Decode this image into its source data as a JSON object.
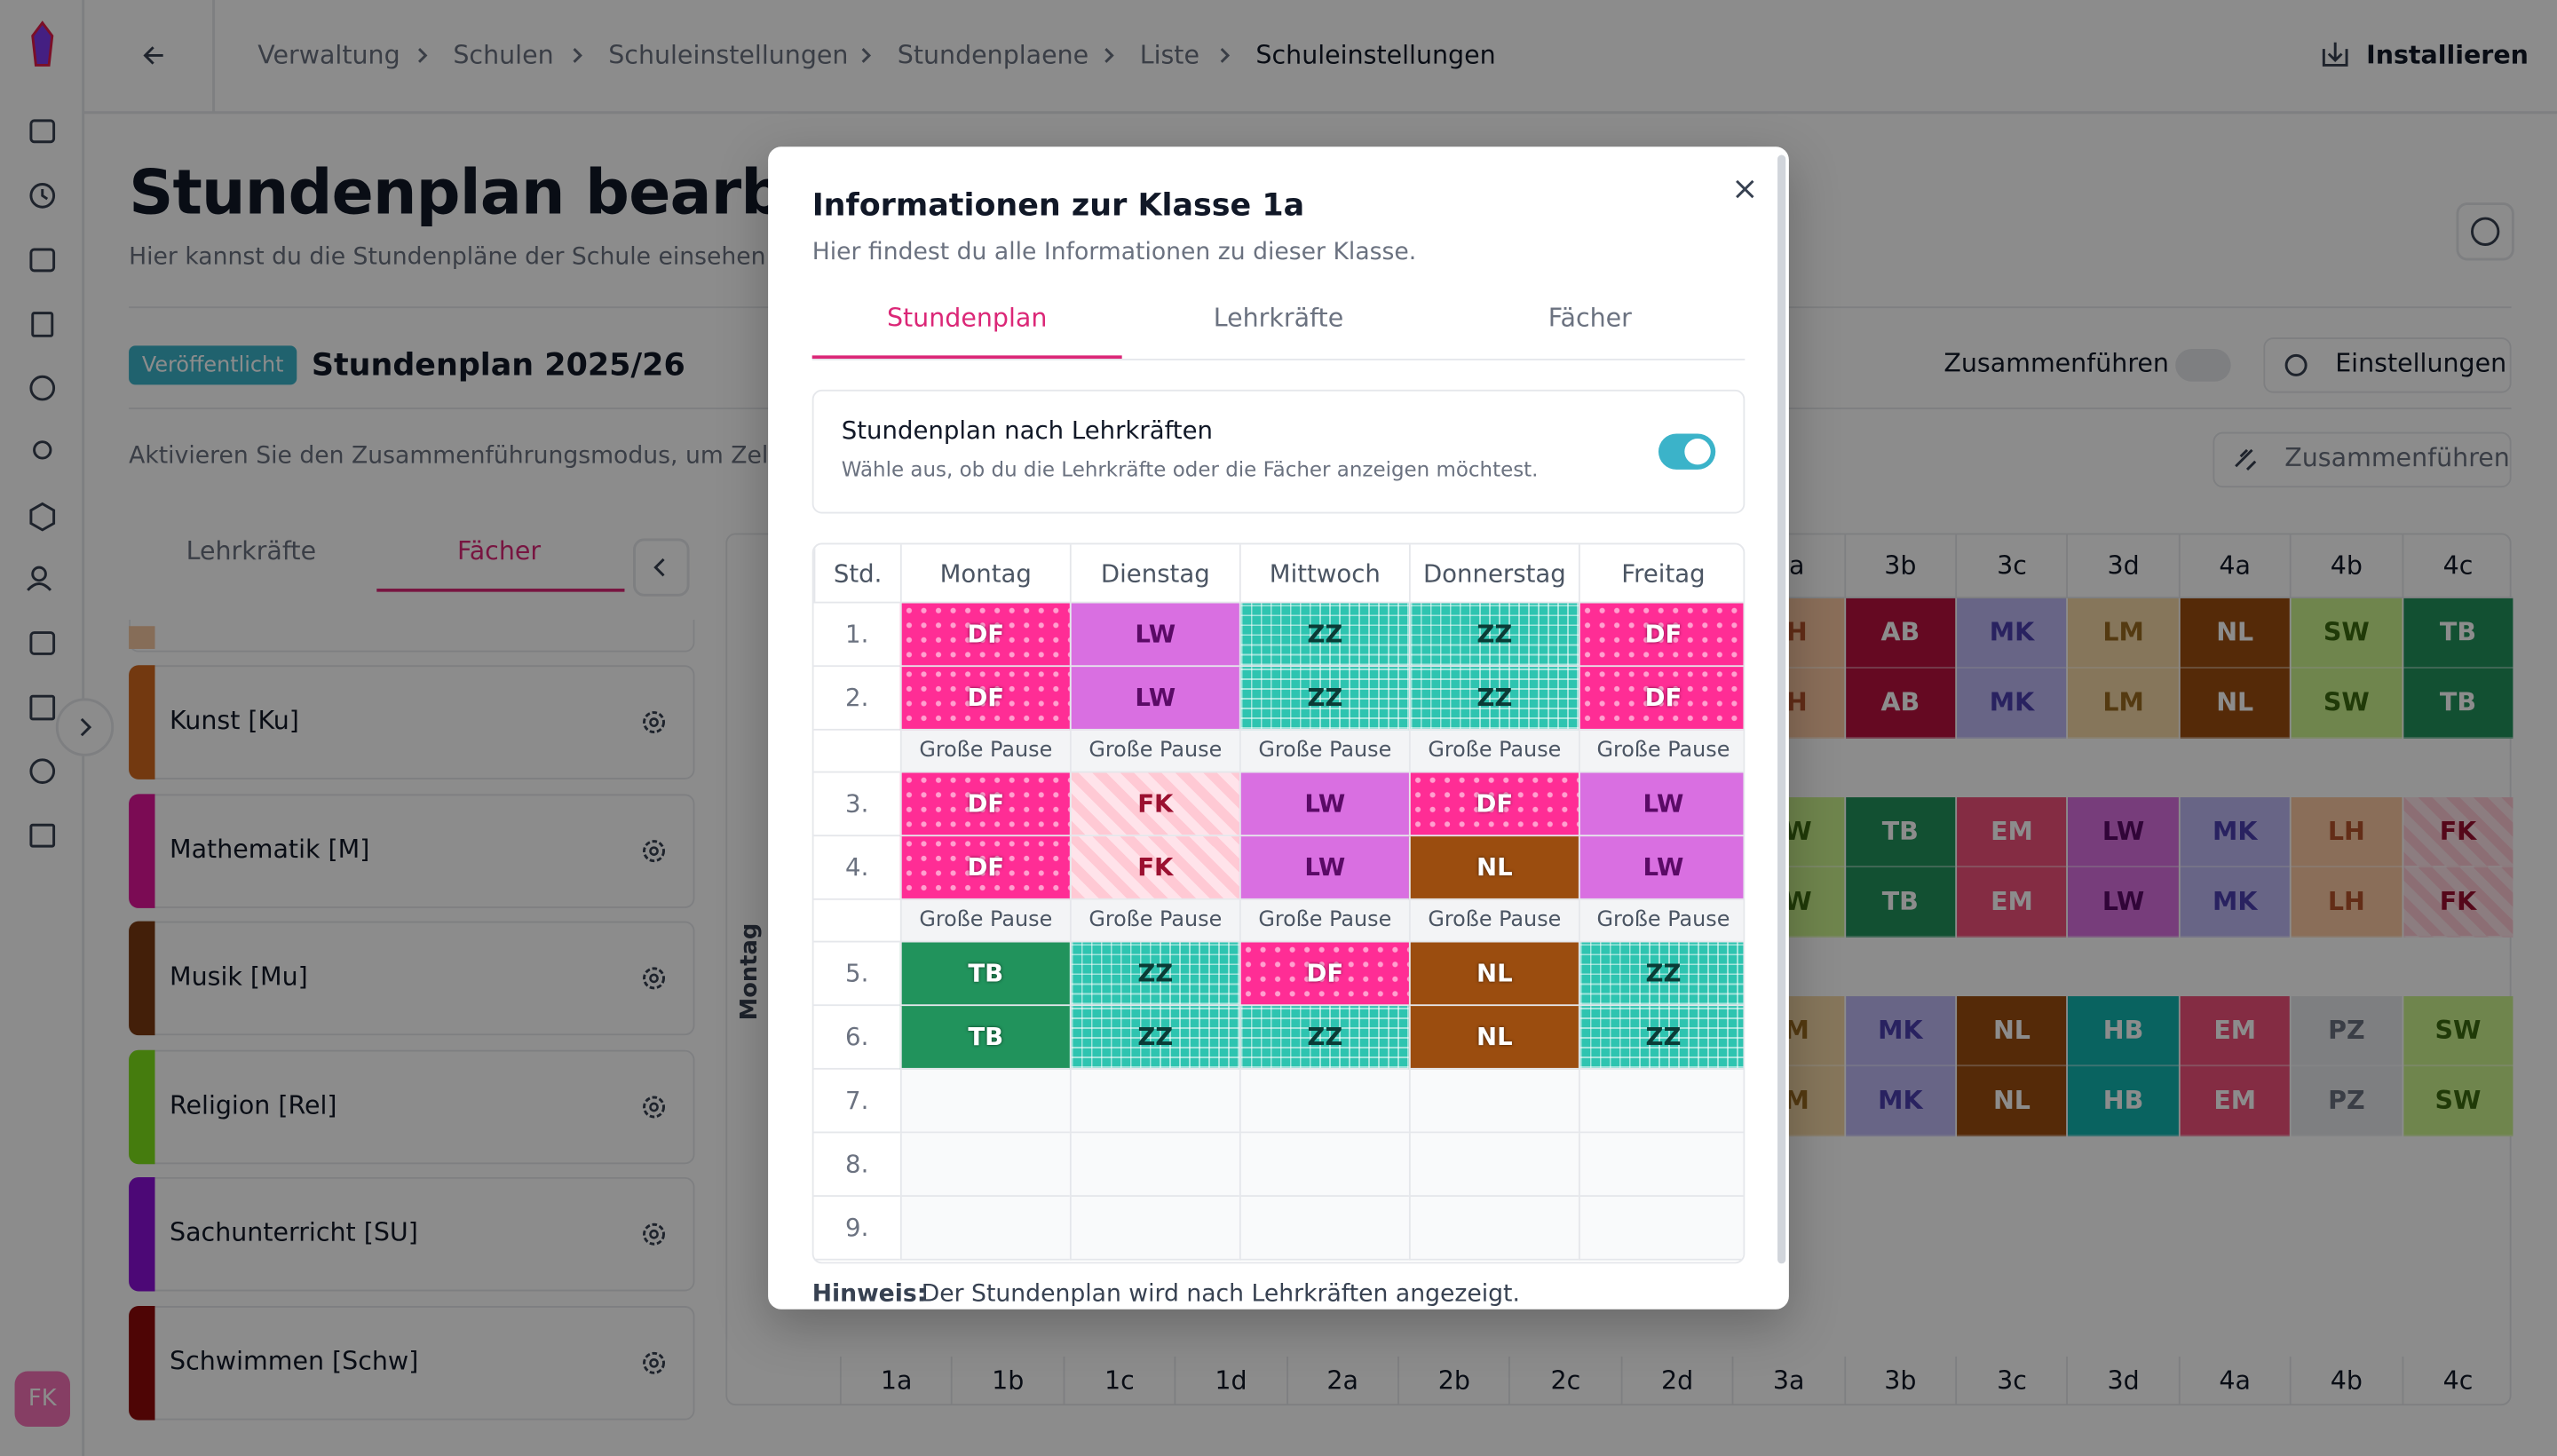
{
  "sidebar": {
    "avatar": "FK"
  },
  "header": {
    "breadcrumbs": [
      "Verwaltung",
      "Schulen",
      "Schuleinstellungen",
      "Stundenplaene",
      "Liste",
      "Schuleinstellungen"
    ],
    "install": "Installieren"
  },
  "page": {
    "title": "Stundenplan bearbeit",
    "subtitle": "Hier kannst du die Stundenpläne der Schule einsehen",
    "status": "Veröffentlicht",
    "plan": "Stundenplan 2025/26",
    "merge_label": "Zusammenführen",
    "settings": "Einstellungen",
    "info": "Aktivieren Sie den Zusammenführungsmodus, um Zell",
    "merge_button": "Zusammenführen",
    "tabs": [
      "Lehrkräfte",
      "Fächer"
    ],
    "subjects": [
      {
        "name": "Kunst [Ku]",
        "color": "#d2691e"
      },
      {
        "name": "Mathematik [M]",
        "color": "#e0149a"
      },
      {
        "name": "Musik [Mu]",
        "color": "#7a3a12"
      },
      {
        "name": "Religion [Rel]",
        "color": "#7ee21a"
      },
      {
        "name": "Sachunterricht [SU]",
        "color": "#8a10d8"
      },
      {
        "name": "Schwimmen [Schw]",
        "color": "#8e0a0a"
      }
    ]
  },
  "grid": {
    "day": "Montag",
    "classes": [
      "1a",
      "1b",
      "1c",
      "1d",
      "2a",
      "2b",
      "2c",
      "2d",
      "3a",
      "3b",
      "3c",
      "3d",
      "4a",
      "4b",
      "4c"
    ],
    "blocks": [
      [
        {
          "label": "LH",
          "color": "#fbc9a2",
          "text": "#b4522a"
        },
        {
          "label": "AB",
          "color": "#b8123f",
          "text": "#ffffff"
        },
        {
          "label": "MK",
          "color": "#bdb8f4",
          "text": "#4b3fb0"
        },
        {
          "label": "LM",
          "color": "#f5d8a6",
          "text": "#9a6a20"
        },
        {
          "label": "NL",
          "color": "#9b4d0f",
          "text": "#ffffff"
        },
        {
          "label": "SW",
          "color": "#cbf28c",
          "text": "#3b6b10"
        },
        {
          "label": "TB",
          "color": "#21935c",
          "text": "#ffffff"
        }
      ],
      [
        {
          "label": "SW",
          "color": "#cbf28c",
          "text": "#3b6b10"
        },
        {
          "label": "TB",
          "color": "#21935c",
          "text": "#ffffff"
        },
        {
          "label": "EM",
          "color": "#f0507a",
          "text": "#ffffff"
        },
        {
          "label": "LW",
          "color": "#d96fe1",
          "text": "#5a0a66"
        },
        {
          "label": "MK",
          "color": "#bdb8f4",
          "text": "#4b3fb0"
        },
        {
          "label": "LH",
          "color": "#fbc9a2",
          "text": "#b4522a"
        },
        {
          "label": "FK",
          "color": "#ffc9d4",
          "text": "#9b1030"
        }
      ],
      [
        {
          "label": "LM",
          "color": "#f5d8a6",
          "text": "#9a6a20"
        },
        {
          "label": "MK",
          "color": "#bdb8f4",
          "text": "#4b3fb0"
        },
        {
          "label": "NL",
          "color": "#9b4d0f",
          "text": "#ffffff"
        },
        {
          "label": "HB",
          "color": "#12b5b0",
          "text": "#ffffff"
        },
        {
          "label": "EM",
          "color": "#f0507a",
          "text": "#ffffff"
        },
        {
          "label": "PZ",
          "color": "#e5e7eb",
          "text": "#6b7280"
        },
        {
          "label": "SW",
          "color": "#cbf28c",
          "text": "#3b6b10"
        }
      ]
    ]
  },
  "modal": {
    "title": "Informationen zur Klasse 1a",
    "subtitle": "Hier findest du alle Informationen zu dieser Klasse.",
    "tabs": [
      "Stundenplan",
      "Lehrkräfte",
      "Fächer"
    ],
    "toggle_title": "Stundenplan nach Lehrkräften",
    "toggle_desc": "Wähle aus, ob du die Lehrkräfte oder die Fächer anzeigen möchtest.",
    "header": [
      "Std.",
      "Montag",
      "Dienstag",
      "Mittwoch",
      "Donnerstag",
      "Freitag"
    ],
    "rows": [
      {
        "period": "1.",
        "cells": [
          {
            "label": "DF",
            "color": "#ff2d95",
            "pattern": "dots",
            "text": "#ffffff"
          },
          {
            "label": "LW",
            "color": "#d96fe1",
            "pattern": "solid",
            "text": "#5a0a66"
          },
          {
            "label": "ZZ",
            "color": "#2ec4b0",
            "pattern": "grid",
            "text": "#0b3b36"
          },
          {
            "label": "ZZ",
            "color": "#2ec4b0",
            "pattern": "grid",
            "text": "#0b3b36"
          },
          {
            "label": "DF",
            "color": "#ff2d95",
            "pattern": "dots",
            "text": "#ffffff"
          }
        ]
      },
      {
        "period": "2.",
        "cells": [
          {
            "label": "DF",
            "color": "#ff2d95",
            "pattern": "dots",
            "text": "#ffffff"
          },
          {
            "label": "LW",
            "color": "#d96fe1",
            "pattern": "solid",
            "text": "#5a0a66"
          },
          {
            "label": "ZZ",
            "color": "#2ec4b0",
            "pattern": "grid",
            "text": "#0b3b36"
          },
          {
            "label": "ZZ",
            "color": "#2ec4b0",
            "pattern": "grid",
            "text": "#0b3b36"
          },
          {
            "label": "DF",
            "color": "#ff2d95",
            "pattern": "dots",
            "text": "#ffffff"
          }
        ]
      },
      {
        "cells": [
          "Große Pause",
          "Große Pause",
          "Große Pause",
          "Große Pause",
          "Große Pause"
        ]
      },
      {
        "period": "3.",
        "cells": [
          {
            "label": "DF",
            "color": "#ff2d95",
            "pattern": "dots",
            "text": "#ffffff"
          },
          {
            "label": "FK",
            "color": "#ffc9d4",
            "pattern": "stripes",
            "text": "#9b1030"
          },
          {
            "label": "LW",
            "color": "#d96fe1",
            "pattern": "solid",
            "text": "#5a0a66"
          },
          {
            "label": "DF",
            "color": "#ff2d95",
            "pattern": "dots",
            "text": "#ffffff"
          },
          {
            "label": "LW",
            "color": "#d96fe1",
            "pattern": "solid",
            "text": "#5a0a66"
          }
        ]
      },
      {
        "period": "4.",
        "cells": [
          {
            "label": "DF",
            "color": "#ff2d95",
            "pattern": "dots",
            "text": "#ffffff"
          },
          {
            "label": "FK",
            "color": "#ffc9d4",
            "pattern": "stripes",
            "text": "#9b1030"
          },
          {
            "label": "LW",
            "color": "#d96fe1",
            "pattern": "solid",
            "text": "#5a0a66"
          },
          {
            "label": "NL",
            "color": "#9b4d0f",
            "pattern": "solid",
            "text": "#ffffff"
          },
          {
            "label": "LW",
            "color": "#d96fe1",
            "pattern": "solid",
            "text": "#5a0a66"
          }
        ]
      },
      {
        "cells": [
          "Große Pause",
          "Große Pause",
          "Große Pause",
          "Große Pause",
          "Große Pause"
        ]
      },
      {
        "period": "5.",
        "cells": [
          {
            "label": "TB",
            "color": "#21935c",
            "pattern": "solid",
            "text": "#ffffff"
          },
          {
            "label": "ZZ",
            "color": "#2ec4b0",
            "pattern": "grid",
            "text": "#0b3b36"
          },
          {
            "label": "DF",
            "color": "#ff2d95",
            "pattern": "dots",
            "text": "#ffffff"
          },
          {
            "label": "NL",
            "color": "#9b4d0f",
            "pattern": "solid",
            "text": "#ffffff"
          },
          {
            "label": "ZZ",
            "color": "#2ec4b0",
            "pattern": "grid",
            "text": "#0b3b36"
          }
        ]
      },
      {
        "period": "6.",
        "cells": [
          {
            "label": "TB",
            "color": "#21935c",
            "pattern": "solid",
            "text": "#ffffff"
          },
          {
            "label": "ZZ",
            "color": "#2ec4b0",
            "pattern": "grid",
            "text": "#0b3b36"
          },
          {
            "label": "ZZ",
            "color": "#2ec4b0",
            "pattern": "grid",
            "text": "#0b3b36"
          },
          {
            "label": "NL",
            "color": "#9b4d0f",
            "pattern": "solid",
            "text": "#ffffff"
          },
          {
            "label": "ZZ",
            "color": "#2ec4b0",
            "pattern": "grid",
            "text": "#0b3b36"
          }
        ]
      },
      {
        "period": "7.",
        "cells": [
          null,
          null,
          null,
          null,
          null
        ]
      },
      {
        "period": "8.",
        "cells": [
          null,
          null,
          null,
          null,
          null
        ]
      },
      {
        "period": "9.",
        "cells": [
          null,
          null,
          null,
          null,
          null
        ]
      }
    ],
    "hint_label": "Hinweis:",
    "hint": "Der Stundenplan wird nach Lehrkräften angezeigt."
  }
}
